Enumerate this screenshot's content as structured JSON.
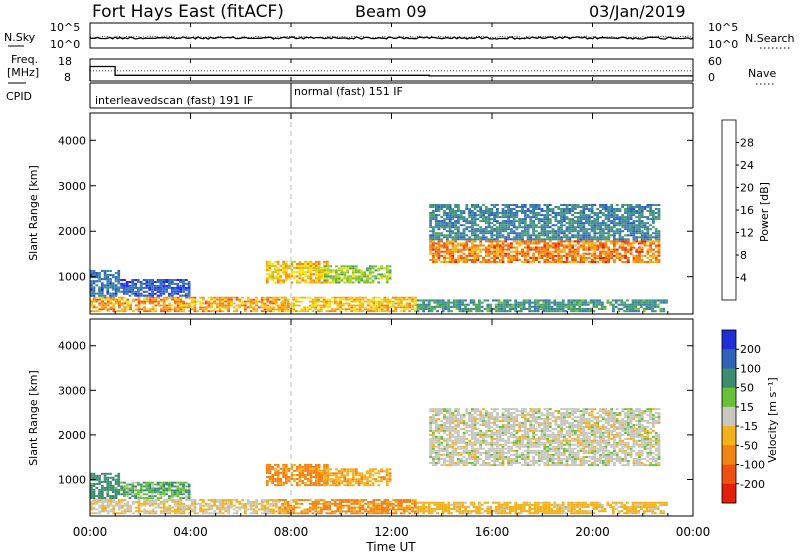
{
  "chart_data": {
    "type": "heatmap",
    "title": {
      "station": "Fort Hays East (fitACF)",
      "beam": "Beam 09",
      "date": "03/Jan/2019"
    },
    "xlabel": "Time UT",
    "x_ticks": [
      "00:00",
      "04:00",
      "08:00",
      "12:00",
      "16:00",
      "20:00",
      "00:00"
    ],
    "xlim_hours": [
      0,
      24
    ],
    "marker_time_hours": 8,
    "noise_panel": {
      "left_label": "N.Sky",
      "right_label": "N.Search",
      "left_ticks": [
        "10^5",
        "10^0"
      ],
      "right_ticks": [
        "10^5",
        "10^0"
      ]
    },
    "freq_panel": {
      "left_label_line1": "Freq.",
      "left_label_line2": "[MHz]",
      "right_label": "Nave",
      "left_ticks": [
        18,
        8
      ],
      "right_ticks": [
        60,
        0
      ],
      "freq_steps": [
        {
          "t": 0.0,
          "mhz": 14.6
        },
        {
          "t": 1.0,
          "mhz": 10.6
        },
        {
          "t": 13.5,
          "mhz": 10.3
        }
      ]
    },
    "cpid": {
      "label": "CPID",
      "segments": [
        {
          "start": 0,
          "end": 8,
          "text": "interleavedscan (fast) 191 IF"
        },
        {
          "start": 8,
          "end": 24,
          "text": "normal (fast) 151 IF"
        }
      ]
    },
    "range_axis": {
      "label": "Slant Range [km]",
      "ticks": [
        1000,
        2000,
        3000,
        4000
      ],
      "ylim": [
        180,
        4600
      ]
    },
    "power": {
      "colorbar_label": "Power [dB]",
      "colorbar_ticks": [
        "4",
        "8",
        "12",
        "16",
        "20",
        "24",
        "28"
      ],
      "vmin": 0,
      "vmax": 32,
      "colors": [
        "#1c27f5",
        "#2f5bd4",
        "#3a7ab0",
        "#3f9387",
        "#4ba35f",
        "#7abf3a",
        "#b8d22a",
        "#f2e51c",
        "#f7b414",
        "#f28a12",
        "#ee5a10",
        "#e4250c"
      ]
    },
    "velocity": {
      "colorbar_label": "Velocity [m s⁻¹]",
      "colorbar_ticks": [
        "200",
        "100",
        "50",
        "15",
        "-15",
        "-50",
        "-100",
        "-200"
      ],
      "colors": [
        "#1f2fd6",
        "#2e63b8",
        "#3b8c70",
        "#67c23a",
        "#c8c8c0",
        "#f4b21a",
        "#f28213",
        "#ee510f",
        "#e31f0b"
      ]
    },
    "echo_regions": [
      {
        "t0": 0.0,
        "t1": 7.8,
        "r0": 220,
        "r1": 560,
        "power": 24,
        "velocity": -15
      },
      {
        "t0": 0.0,
        "t1": 1.2,
        "r0": 560,
        "r1": 1150,
        "power": 6,
        "velocity": 50
      },
      {
        "t0": 1.2,
        "t1": 4.0,
        "r0": 560,
        "r1": 950,
        "power": 4,
        "velocity": 30
      },
      {
        "t0": 7.0,
        "t1": 9.5,
        "r0": 850,
        "r1": 1350,
        "power": 22,
        "velocity": -60
      },
      {
        "t0": 9.3,
        "t1": 12.0,
        "r0": 850,
        "r1": 1250,
        "power": 16,
        "velocity": -40
      },
      {
        "t0": 7.5,
        "t1": 13.0,
        "r0": 220,
        "r1": 560,
        "power": 22,
        "velocity": -60
      },
      {
        "t0": 13.0,
        "t1": 23.0,
        "r0": 220,
        "r1": 500,
        "power": 10,
        "velocity": -30
      },
      {
        "t0": 13.5,
        "t1": 22.7,
        "r0": 1300,
        "r1": 1800,
        "power": 26,
        "velocity": 0
      },
      {
        "t0": 13.5,
        "t1": 22.7,
        "r0": 1800,
        "r1": 2600,
        "power": 8,
        "velocity": 0
      }
    ]
  }
}
